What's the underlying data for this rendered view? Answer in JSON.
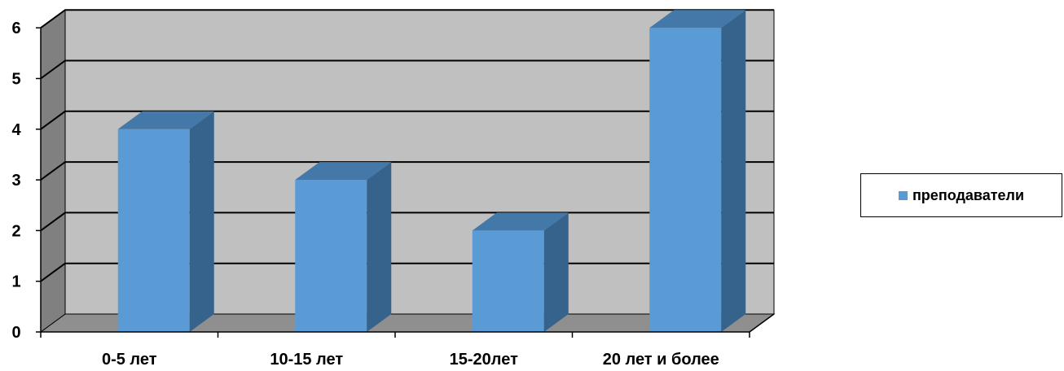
{
  "chart_data": {
    "type": "bar",
    "title": "",
    "xlabel": "",
    "ylabel": "",
    "categories": [
      "0-5 лет",
      "10-15 лет",
      "15-20лет",
      "20 лет и более"
    ],
    "series": [
      {
        "name": "преподаватели",
        "values": [
          4,
          3,
          2,
          6
        ]
      }
    ],
    "yticks": [
      "0",
      "1",
      "2",
      "3",
      "4",
      "5",
      "6"
    ],
    "ylim": [
      0,
      6
    ],
    "grid": true,
    "legend_position": "right",
    "style": "3d-clustered-column",
    "colors": {
      "bar_front": "#5b9bd5",
      "bar_top": "#4478a8",
      "bar_side": "#35638c",
      "back_wall": "#c0c0c0",
      "side_wall": "#808080",
      "floor": "#8f8f8f"
    }
  }
}
